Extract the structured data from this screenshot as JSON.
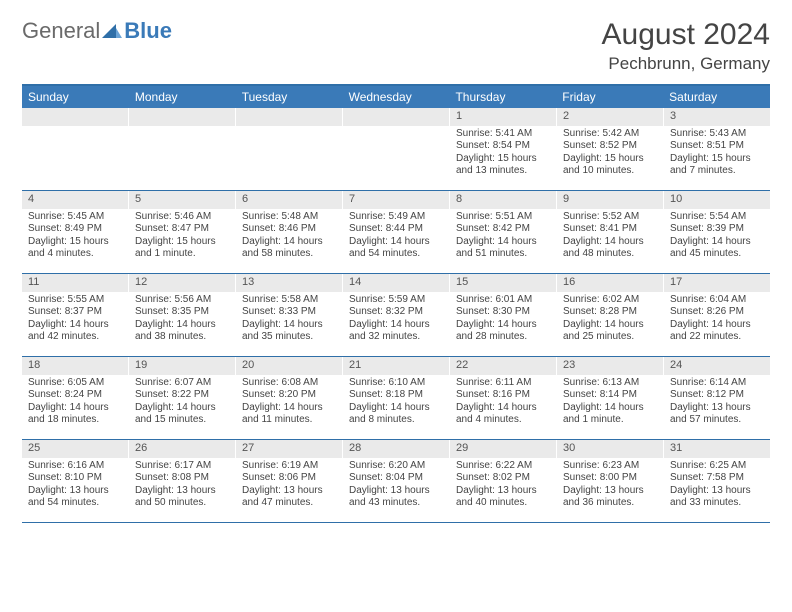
{
  "logo": {
    "part1": "General",
    "part2": "Blue"
  },
  "header": {
    "month_title": "August 2024",
    "location": "Pechbrunn, Germany"
  },
  "colors": {
    "header_bg": "#3a7ab8",
    "row_border": "#2f6fa8",
    "daynum_bg": "#eaeaea",
    "text": "#444444"
  },
  "dow": [
    "Sunday",
    "Monday",
    "Tuesday",
    "Wednesday",
    "Thursday",
    "Friday",
    "Saturday"
  ],
  "weeks": [
    [
      {
        "empty": true
      },
      {
        "empty": true
      },
      {
        "empty": true
      },
      {
        "empty": true
      },
      {
        "num": "1",
        "sunrise": "Sunrise: 5:41 AM",
        "sunset": "Sunset: 8:54 PM",
        "day1": "Daylight: 15 hours",
        "day2": "and 13 minutes."
      },
      {
        "num": "2",
        "sunrise": "Sunrise: 5:42 AM",
        "sunset": "Sunset: 8:52 PM",
        "day1": "Daylight: 15 hours",
        "day2": "and 10 minutes."
      },
      {
        "num": "3",
        "sunrise": "Sunrise: 5:43 AM",
        "sunset": "Sunset: 8:51 PM",
        "day1": "Daylight: 15 hours",
        "day2": "and 7 minutes."
      }
    ],
    [
      {
        "num": "4",
        "sunrise": "Sunrise: 5:45 AM",
        "sunset": "Sunset: 8:49 PM",
        "day1": "Daylight: 15 hours",
        "day2": "and 4 minutes."
      },
      {
        "num": "5",
        "sunrise": "Sunrise: 5:46 AM",
        "sunset": "Sunset: 8:47 PM",
        "day1": "Daylight: 15 hours",
        "day2": "and 1 minute."
      },
      {
        "num": "6",
        "sunrise": "Sunrise: 5:48 AM",
        "sunset": "Sunset: 8:46 PM",
        "day1": "Daylight: 14 hours",
        "day2": "and 58 minutes."
      },
      {
        "num": "7",
        "sunrise": "Sunrise: 5:49 AM",
        "sunset": "Sunset: 8:44 PM",
        "day1": "Daylight: 14 hours",
        "day2": "and 54 minutes."
      },
      {
        "num": "8",
        "sunrise": "Sunrise: 5:51 AM",
        "sunset": "Sunset: 8:42 PM",
        "day1": "Daylight: 14 hours",
        "day2": "and 51 minutes."
      },
      {
        "num": "9",
        "sunrise": "Sunrise: 5:52 AM",
        "sunset": "Sunset: 8:41 PM",
        "day1": "Daylight: 14 hours",
        "day2": "and 48 minutes."
      },
      {
        "num": "10",
        "sunrise": "Sunrise: 5:54 AM",
        "sunset": "Sunset: 8:39 PM",
        "day1": "Daylight: 14 hours",
        "day2": "and 45 minutes."
      }
    ],
    [
      {
        "num": "11",
        "sunrise": "Sunrise: 5:55 AM",
        "sunset": "Sunset: 8:37 PM",
        "day1": "Daylight: 14 hours",
        "day2": "and 42 minutes."
      },
      {
        "num": "12",
        "sunrise": "Sunrise: 5:56 AM",
        "sunset": "Sunset: 8:35 PM",
        "day1": "Daylight: 14 hours",
        "day2": "and 38 minutes."
      },
      {
        "num": "13",
        "sunrise": "Sunrise: 5:58 AM",
        "sunset": "Sunset: 8:33 PM",
        "day1": "Daylight: 14 hours",
        "day2": "and 35 minutes."
      },
      {
        "num": "14",
        "sunrise": "Sunrise: 5:59 AM",
        "sunset": "Sunset: 8:32 PM",
        "day1": "Daylight: 14 hours",
        "day2": "and 32 minutes."
      },
      {
        "num": "15",
        "sunrise": "Sunrise: 6:01 AM",
        "sunset": "Sunset: 8:30 PM",
        "day1": "Daylight: 14 hours",
        "day2": "and 28 minutes."
      },
      {
        "num": "16",
        "sunrise": "Sunrise: 6:02 AM",
        "sunset": "Sunset: 8:28 PM",
        "day1": "Daylight: 14 hours",
        "day2": "and 25 minutes."
      },
      {
        "num": "17",
        "sunrise": "Sunrise: 6:04 AM",
        "sunset": "Sunset: 8:26 PM",
        "day1": "Daylight: 14 hours",
        "day2": "and 22 minutes."
      }
    ],
    [
      {
        "num": "18",
        "sunrise": "Sunrise: 6:05 AM",
        "sunset": "Sunset: 8:24 PM",
        "day1": "Daylight: 14 hours",
        "day2": "and 18 minutes."
      },
      {
        "num": "19",
        "sunrise": "Sunrise: 6:07 AM",
        "sunset": "Sunset: 8:22 PM",
        "day1": "Daylight: 14 hours",
        "day2": "and 15 minutes."
      },
      {
        "num": "20",
        "sunrise": "Sunrise: 6:08 AM",
        "sunset": "Sunset: 8:20 PM",
        "day1": "Daylight: 14 hours",
        "day2": "and 11 minutes."
      },
      {
        "num": "21",
        "sunrise": "Sunrise: 6:10 AM",
        "sunset": "Sunset: 8:18 PM",
        "day1": "Daylight: 14 hours",
        "day2": "and 8 minutes."
      },
      {
        "num": "22",
        "sunrise": "Sunrise: 6:11 AM",
        "sunset": "Sunset: 8:16 PM",
        "day1": "Daylight: 14 hours",
        "day2": "and 4 minutes."
      },
      {
        "num": "23",
        "sunrise": "Sunrise: 6:13 AM",
        "sunset": "Sunset: 8:14 PM",
        "day1": "Daylight: 14 hours",
        "day2": "and 1 minute."
      },
      {
        "num": "24",
        "sunrise": "Sunrise: 6:14 AM",
        "sunset": "Sunset: 8:12 PM",
        "day1": "Daylight: 13 hours",
        "day2": "and 57 minutes."
      }
    ],
    [
      {
        "num": "25",
        "sunrise": "Sunrise: 6:16 AM",
        "sunset": "Sunset: 8:10 PM",
        "day1": "Daylight: 13 hours",
        "day2": "and 54 minutes."
      },
      {
        "num": "26",
        "sunrise": "Sunrise: 6:17 AM",
        "sunset": "Sunset: 8:08 PM",
        "day1": "Daylight: 13 hours",
        "day2": "and 50 minutes."
      },
      {
        "num": "27",
        "sunrise": "Sunrise: 6:19 AM",
        "sunset": "Sunset: 8:06 PM",
        "day1": "Daylight: 13 hours",
        "day2": "and 47 minutes."
      },
      {
        "num": "28",
        "sunrise": "Sunrise: 6:20 AM",
        "sunset": "Sunset: 8:04 PM",
        "day1": "Daylight: 13 hours",
        "day2": "and 43 minutes."
      },
      {
        "num": "29",
        "sunrise": "Sunrise: 6:22 AM",
        "sunset": "Sunset: 8:02 PM",
        "day1": "Daylight: 13 hours",
        "day2": "and 40 minutes."
      },
      {
        "num": "30",
        "sunrise": "Sunrise: 6:23 AM",
        "sunset": "Sunset: 8:00 PM",
        "day1": "Daylight: 13 hours",
        "day2": "and 36 minutes."
      },
      {
        "num": "31",
        "sunrise": "Sunrise: 6:25 AM",
        "sunset": "Sunset: 7:58 PM",
        "day1": "Daylight: 13 hours",
        "day2": "and 33 minutes."
      }
    ]
  ]
}
